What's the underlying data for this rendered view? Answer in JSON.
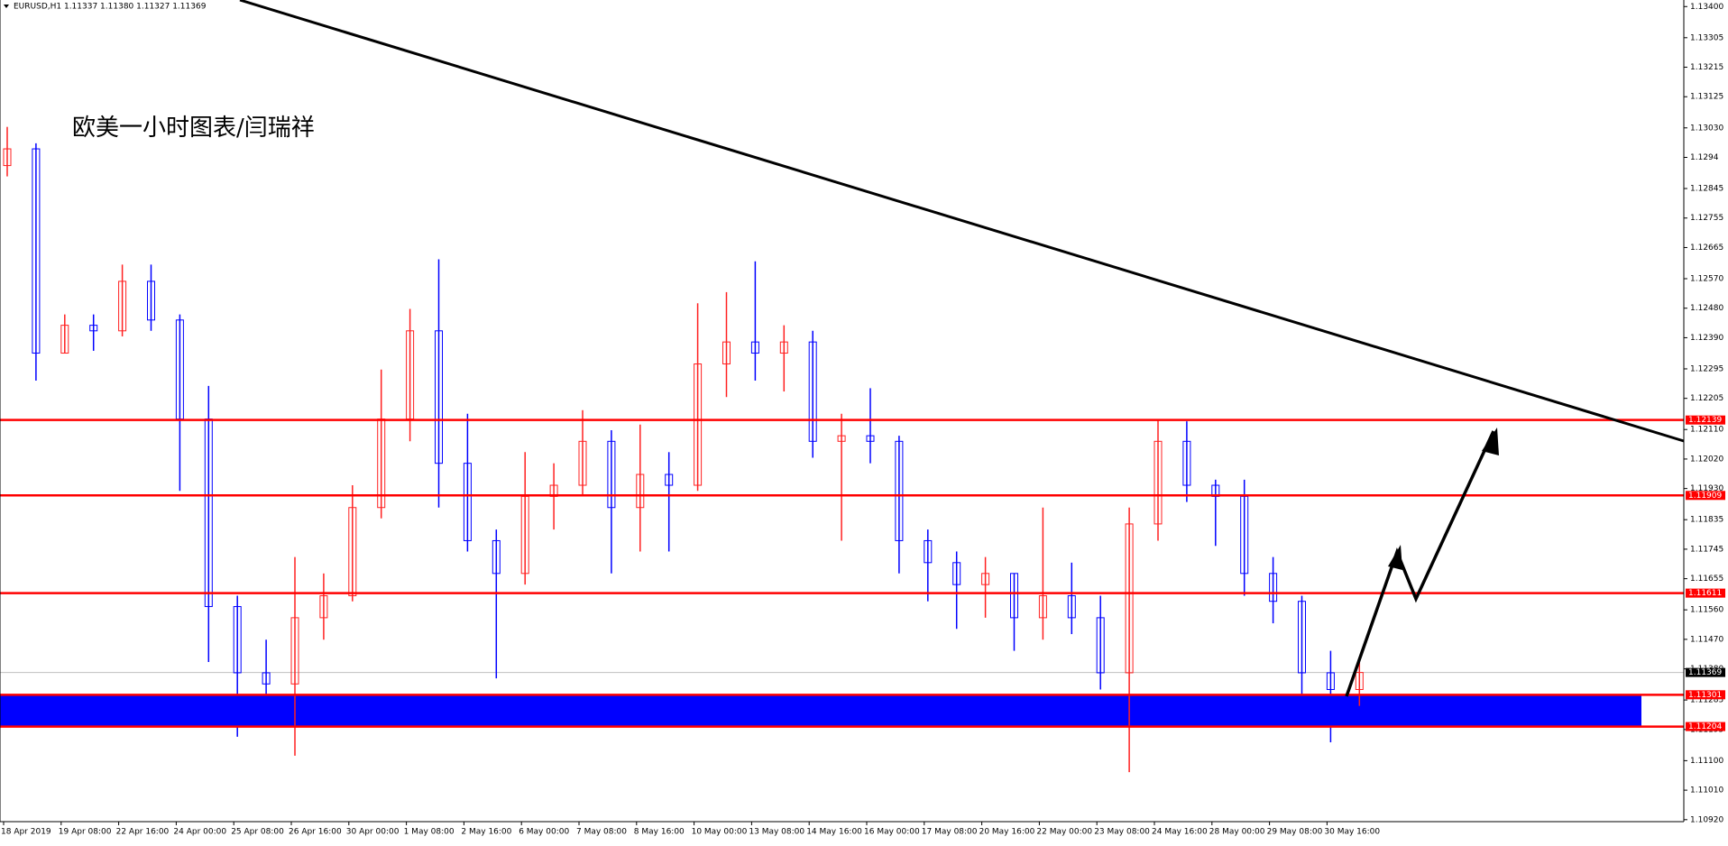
{
  "chart_data": {
    "type": "ohlc",
    "title": "EURUSD,H1  1.11337 1.11380 1.11327 1.11369",
    "annotation": "欧美一小时图表/闫瑞祥",
    "categories": [
      "18 Apr 2019",
      "19 Apr 08:00",
      "22 Apr 16:00",
      "24 Apr 00:00",
      "25 Apr 08:00",
      "26 Apr 16:00",
      "30 Apr 00:00",
      "1 May 08:00",
      "2 May 16:00",
      "6 May 00:00",
      "7 May 08:00",
      "8 May 16:00",
      "10 May 00:00",
      "13 May 08:00",
      "14 May 16:00",
      "16 May 00:00",
      "17 May 08:00",
      "20 May 16:00",
      "22 May 00:00",
      "23 May 08:00",
      "24 May 16:00",
      "28 May 00:00",
      "29 May 08:00",
      "30 May 16:00"
    ],
    "up_color": "#ff2020",
    "down_color": "#0000ff",
    "open": [
      1.12915,
      1.12966,
      1.12343,
      1.12428,
      1.12411,
      1.12562,
      1.12444,
      1.12142,
      1.1157,
      1.11368,
      1.11334,
      1.11536,
      1.11603,
      1.11872,
      1.12142,
      1.12411,
      1.12007,
      1.11771,
      1.11671,
      1.11906,
      1.1194,
      1.12074,
      1.11872,
      1.11973,
      1.1194,
      1.1231,
      1.12377,
      1.12343,
      1.12377,
      1.12074,
      1.12091,
      1.12074,
      1.11771,
      1.11704,
      1.11637,
      1.11671,
      1.11536,
      1.11603,
      1.11536,
      1.11368,
      1.11822,
      1.12074,
      1.1194,
      1.11906,
      1.11671,
      1.11586,
      1.11368,
      1.11317
    ],
    "high": [
      1.13033,
      1.12983,
      1.12461,
      1.12461,
      1.12613,
      1.12613,
      1.12461,
      1.12243,
      1.11603,
      1.11469,
      1.11721,
      1.11671,
      1.1194,
      1.12293,
      1.12478,
      1.12629,
      1.12158,
      1.11805,
      1.12041,
      1.12007,
      1.12169,
      1.12108,
      1.12125,
      1.12041,
      1.12495,
      1.12529,
      1.12623,
      1.12428,
      1.12411,
      1.12158,
      1.12236,
      1.12091,
      1.11805,
      1.11738,
      1.11721,
      1.11671,
      1.11872,
      1.11704,
      1.11603,
      1.11872,
      1.12142,
      1.12135,
      1.11957,
      1.11957,
      1.11721,
      1.11603,
      1.11435,
      1.11401
    ],
    "low": [
      1.12882,
      1.12259,
      1.12343,
      1.1235,
      1.12394,
      1.12411,
      1.11923,
      1.11401,
      1.11173,
      1.1125,
      1.11115,
      1.11469,
      1.11586,
      1.11839,
      1.12074,
      1.11872,
      1.11738,
      1.11351,
      1.11637,
      1.11805,
      1.11906,
      1.11671,
      1.11738,
      1.11738,
      1.11923,
      1.12209,
      1.12259,
      1.12226,
      1.12024,
      1.11771,
      1.12007,
      1.11671,
      1.11586,
      1.11502,
      1.11536,
      1.11435,
      1.11469,
      1.11486,
      1.11317,
      1.11065,
      1.11771,
      1.11889,
      1.11755,
      1.11603,
      1.11519,
      1.11267,
      1.11156,
      1.11267
    ],
    "close": [
      1.12966,
      1.12343,
      1.12428,
      1.12411,
      1.12562,
      1.12444,
      1.12142,
      1.1157,
      1.11368,
      1.11334,
      1.11536,
      1.11603,
      1.11872,
      1.12142,
      1.12411,
      1.12007,
      1.11771,
      1.11671,
      1.11906,
      1.1194,
      1.12074,
      1.11872,
      1.11973,
      1.1194,
      1.1231,
      1.12377,
      1.12343,
      1.12377,
      1.12074,
      1.12091,
      1.12074,
      1.11771,
      1.11704,
      1.11637,
      1.11671,
      1.11536,
      1.11603,
      1.11536,
      1.11368,
      1.11822,
      1.12074,
      1.1194,
      1.11906,
      1.11671,
      1.11586,
      1.11368,
      1.11317,
      1.11369
    ],
    "ylim": [
      1.10914,
      1.1342
    ],
    "yticks": [
      {
        "value": 1.134,
        "label": "1.13400"
      },
      1.13305,
      1.13215,
      1.13125,
      {
        "value": 1.1303,
        "label": "1.13030"
      },
      1.1294,
      1.12845,
      1.12755,
      1.12665,
      {
        "value": 1.1257,
        "label": "1.12570"
      },
      {
        "value": 1.1248,
        "label": "1.12480"
      },
      {
        "value": 1.1239,
        "label": "1.12390"
      },
      1.12295,
      1.12205,
      {
        "value": 1.1211,
        "label": "1.12110"
      },
      {
        "value": 1.1202,
        "label": "1.12020"
      },
      {
        "value": 1.1193,
        "label": "1.11930"
      },
      1.11835,
      1.11745,
      1.11655,
      {
        "value": 1.1156,
        "label": "1.11560"
      },
      {
        "value": 1.1147,
        "label": "1.11470"
      },
      {
        "value": 1.1138,
        "label": "1.11380"
      },
      1.11285,
      1.11195,
      {
        "value": 1.111,
        "label": "1.11100"
      },
      {
        "value": 1.1101,
        "label": "1.11010"
      },
      {
        "value": 1.1092,
        "label": "1.10920"
      }
    ],
    "levels": [
      1.12139,
      1.11909,
      1.11611
    ],
    "level_color": "#ff0000",
    "zone": {
      "top": 1.11301,
      "bottom": 1.11204,
      "color": "#0000ff"
    },
    "last_price": 1.11369,
    "last_price_color": "#c0c0c0"
  }
}
